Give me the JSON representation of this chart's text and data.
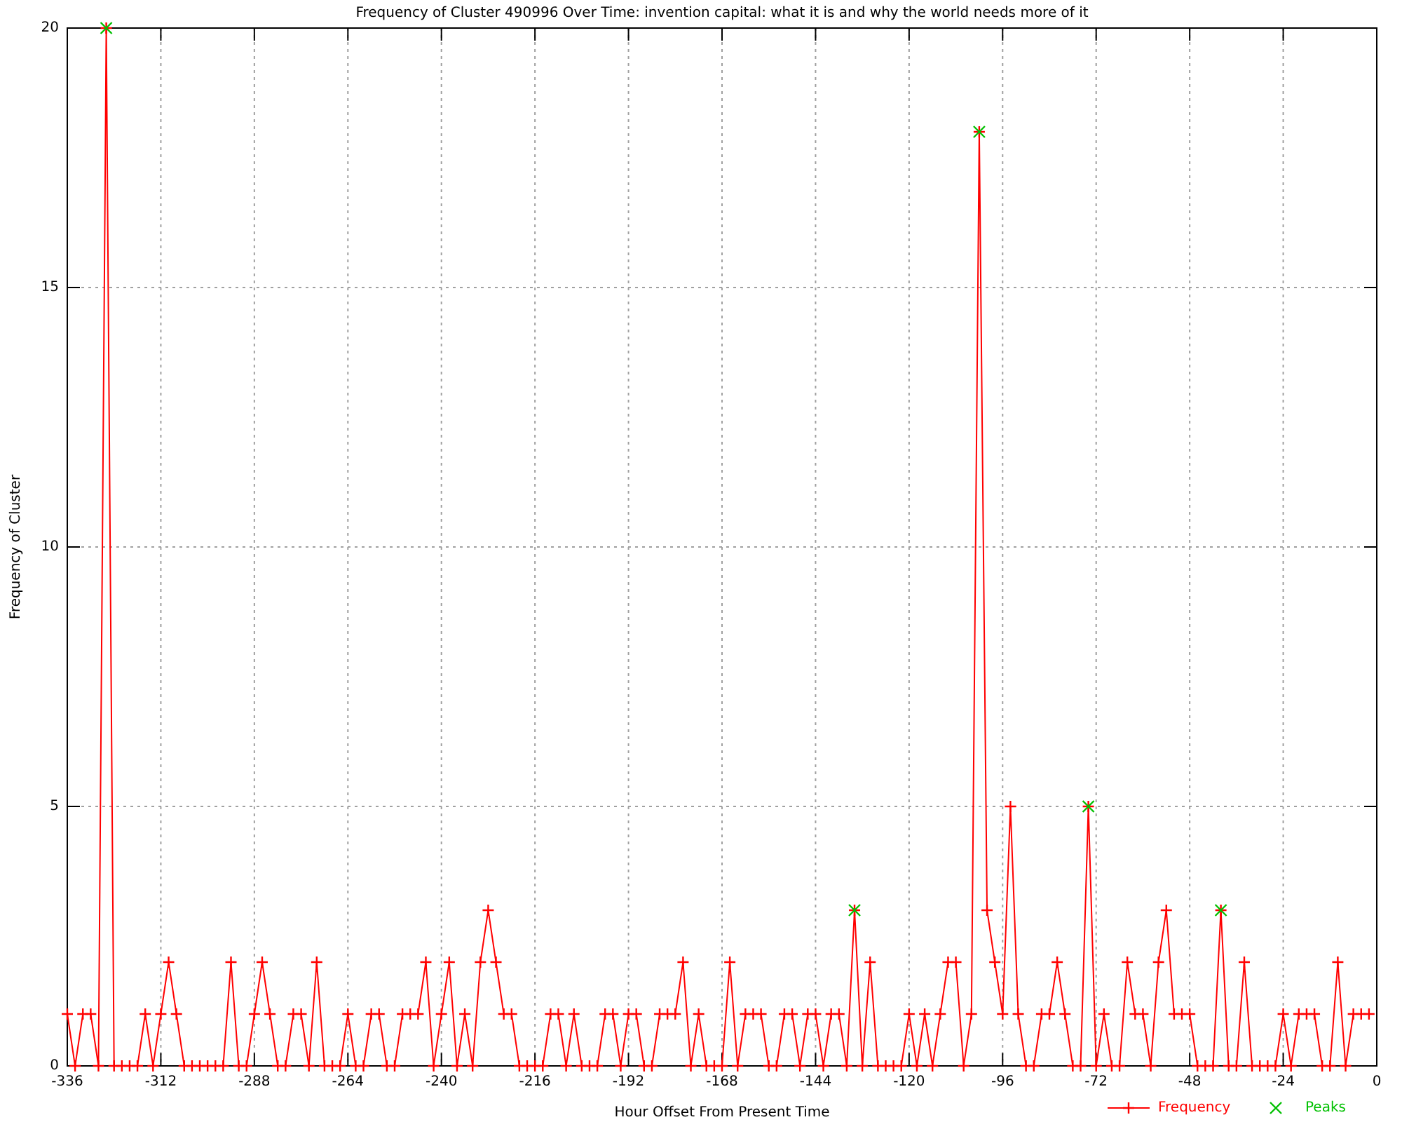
{
  "chart_data": {
    "type": "line",
    "title": "Frequency of Cluster 490996 Over Time: invention capital: what it is and why the world needs more of it",
    "xlabel": "Hour Offset From Present Time",
    "ylabel": "Frequency of Cluster",
    "x": [
      -336,
      -334,
      -332,
      -330,
      -328,
      -326,
      -324,
      -322,
      -320,
      -318,
      -316,
      -314,
      -312,
      -310,
      -308,
      -306,
      -304,
      -302,
      -300,
      -298,
      -296,
      -294,
      -292,
      -290,
      -288,
      -286,
      -284,
      -282,
      -280,
      -278,
      -276,
      -274,
      -272,
      -270,
      -268,
      -266,
      -264,
      -262,
      -260,
      -258,
      -256,
      -254,
      -252,
      -250,
      -248,
      -246,
      -244,
      -242,
      -240,
      -238,
      -236,
      -234,
      -232,
      -230,
      -228,
      -226,
      -224,
      -222,
      -220,
      -218,
      -216,
      -214,
      -212,
      -210,
      -208,
      -206,
      -204,
      -202,
      -200,
      -198,
      -196,
      -194,
      -192,
      -190,
      -188,
      -186,
      -184,
      -182,
      -180,
      -178,
      -176,
      -174,
      -172,
      -170,
      -168,
      -166,
      -164,
      -162,
      -160,
      -158,
      -156,
      -154,
      -152,
      -150,
      -148,
      -146,
      -144,
      -142,
      -140,
      -138,
      -136,
      -134,
      -132,
      -130,
      -128,
      -126,
      -124,
      -122,
      -120,
      -118,
      -116,
      -114,
      -112,
      -110,
      -108,
      -106,
      -104,
      -102,
      -100,
      -98,
      -96,
      -94,
      -92,
      -90,
      -88,
      -86,
      -84,
      -82,
      -80,
      -78,
      -76,
      -74,
      -72,
      -70,
      -68,
      -66,
      -64,
      -62,
      -60,
      -58,
      -56,
      -54,
      -52,
      -50,
      -48,
      -46,
      -44,
      -42,
      -40,
      -38,
      -36,
      -34,
      -32,
      -30,
      -28,
      -26,
      -24,
      -22,
      -20,
      -18,
      -16,
      -14,
      -12,
      -10,
      -8,
      -6,
      -4,
      -2
    ],
    "series": [
      {
        "name": "Frequency",
        "color": "#ff0000",
        "marker": "cross",
        "values": [
          1,
          0,
          1,
          1,
          0,
          20,
          0,
          0,
          0,
          0,
          1,
          0,
          1,
          2,
          1,
          0,
          0,
          0,
          0,
          0,
          0,
          2,
          0,
          0,
          1,
          2,
          1,
          0,
          0,
          1,
          1,
          0,
          2,
          0,
          0,
          0,
          1,
          0,
          0,
          1,
          1,
          0,
          0,
          1,
          1,
          1,
          2,
          0,
          1,
          2,
          0,
          1,
          0,
          2,
          3,
          2,
          1,
          1,
          0,
          0,
          0,
          0,
          1,
          1,
          0,
          1,
          0,
          0,
          0,
          1,
          1,
          0,
          1,
          1,
          0,
          0,
          1,
          1,
          1,
          2,
          0,
          1,
          0,
          0,
          0,
          2,
          0,
          1,
          1,
          1,
          0,
          0,
          1,
          1,
          0,
          1,
          1,
          0,
          1,
          1,
          0,
          3,
          0,
          2,
          0,
          0,
          0,
          0,
          1,
          0,
          1,
          0,
          1,
          2,
          2,
          0,
          1,
          18,
          3,
          2,
          1,
          5,
          1,
          0,
          0,
          1,
          1,
          2,
          1,
          0,
          0,
          5,
          0,
          1,
          0,
          0,
          2,
          1,
          1,
          0,
          2,
          3,
          1,
          1,
          1,
          0,
          0,
          0,
          3,
          0,
          0,
          2,
          0,
          0,
          0,
          0,
          1,
          0,
          1,
          1,
          1,
          0,
          0,
          2,
          0,
          1,
          1,
          1
        ]
      },
      {
        "name": "Peaks",
        "type": "scatter",
        "color": "#00c000",
        "marker": "cross",
        "x": [
          -326,
          -134,
          -102,
          -74,
          -40
        ],
        "values": [
          20,
          3,
          18,
          5,
          3
        ]
      }
    ],
    "xlim": [
      -336,
      0
    ],
    "xticks": [
      -336,
      -312,
      -288,
      -264,
      -240,
      -216,
      -192,
      -168,
      -144,
      -120,
      -96,
      -72,
      -48,
      -24,
      0
    ],
    "ylim": [
      0,
      20
    ],
    "yticks": [
      0,
      5,
      10,
      15,
      20
    ],
    "grid": true,
    "legend": "bottom right"
  }
}
